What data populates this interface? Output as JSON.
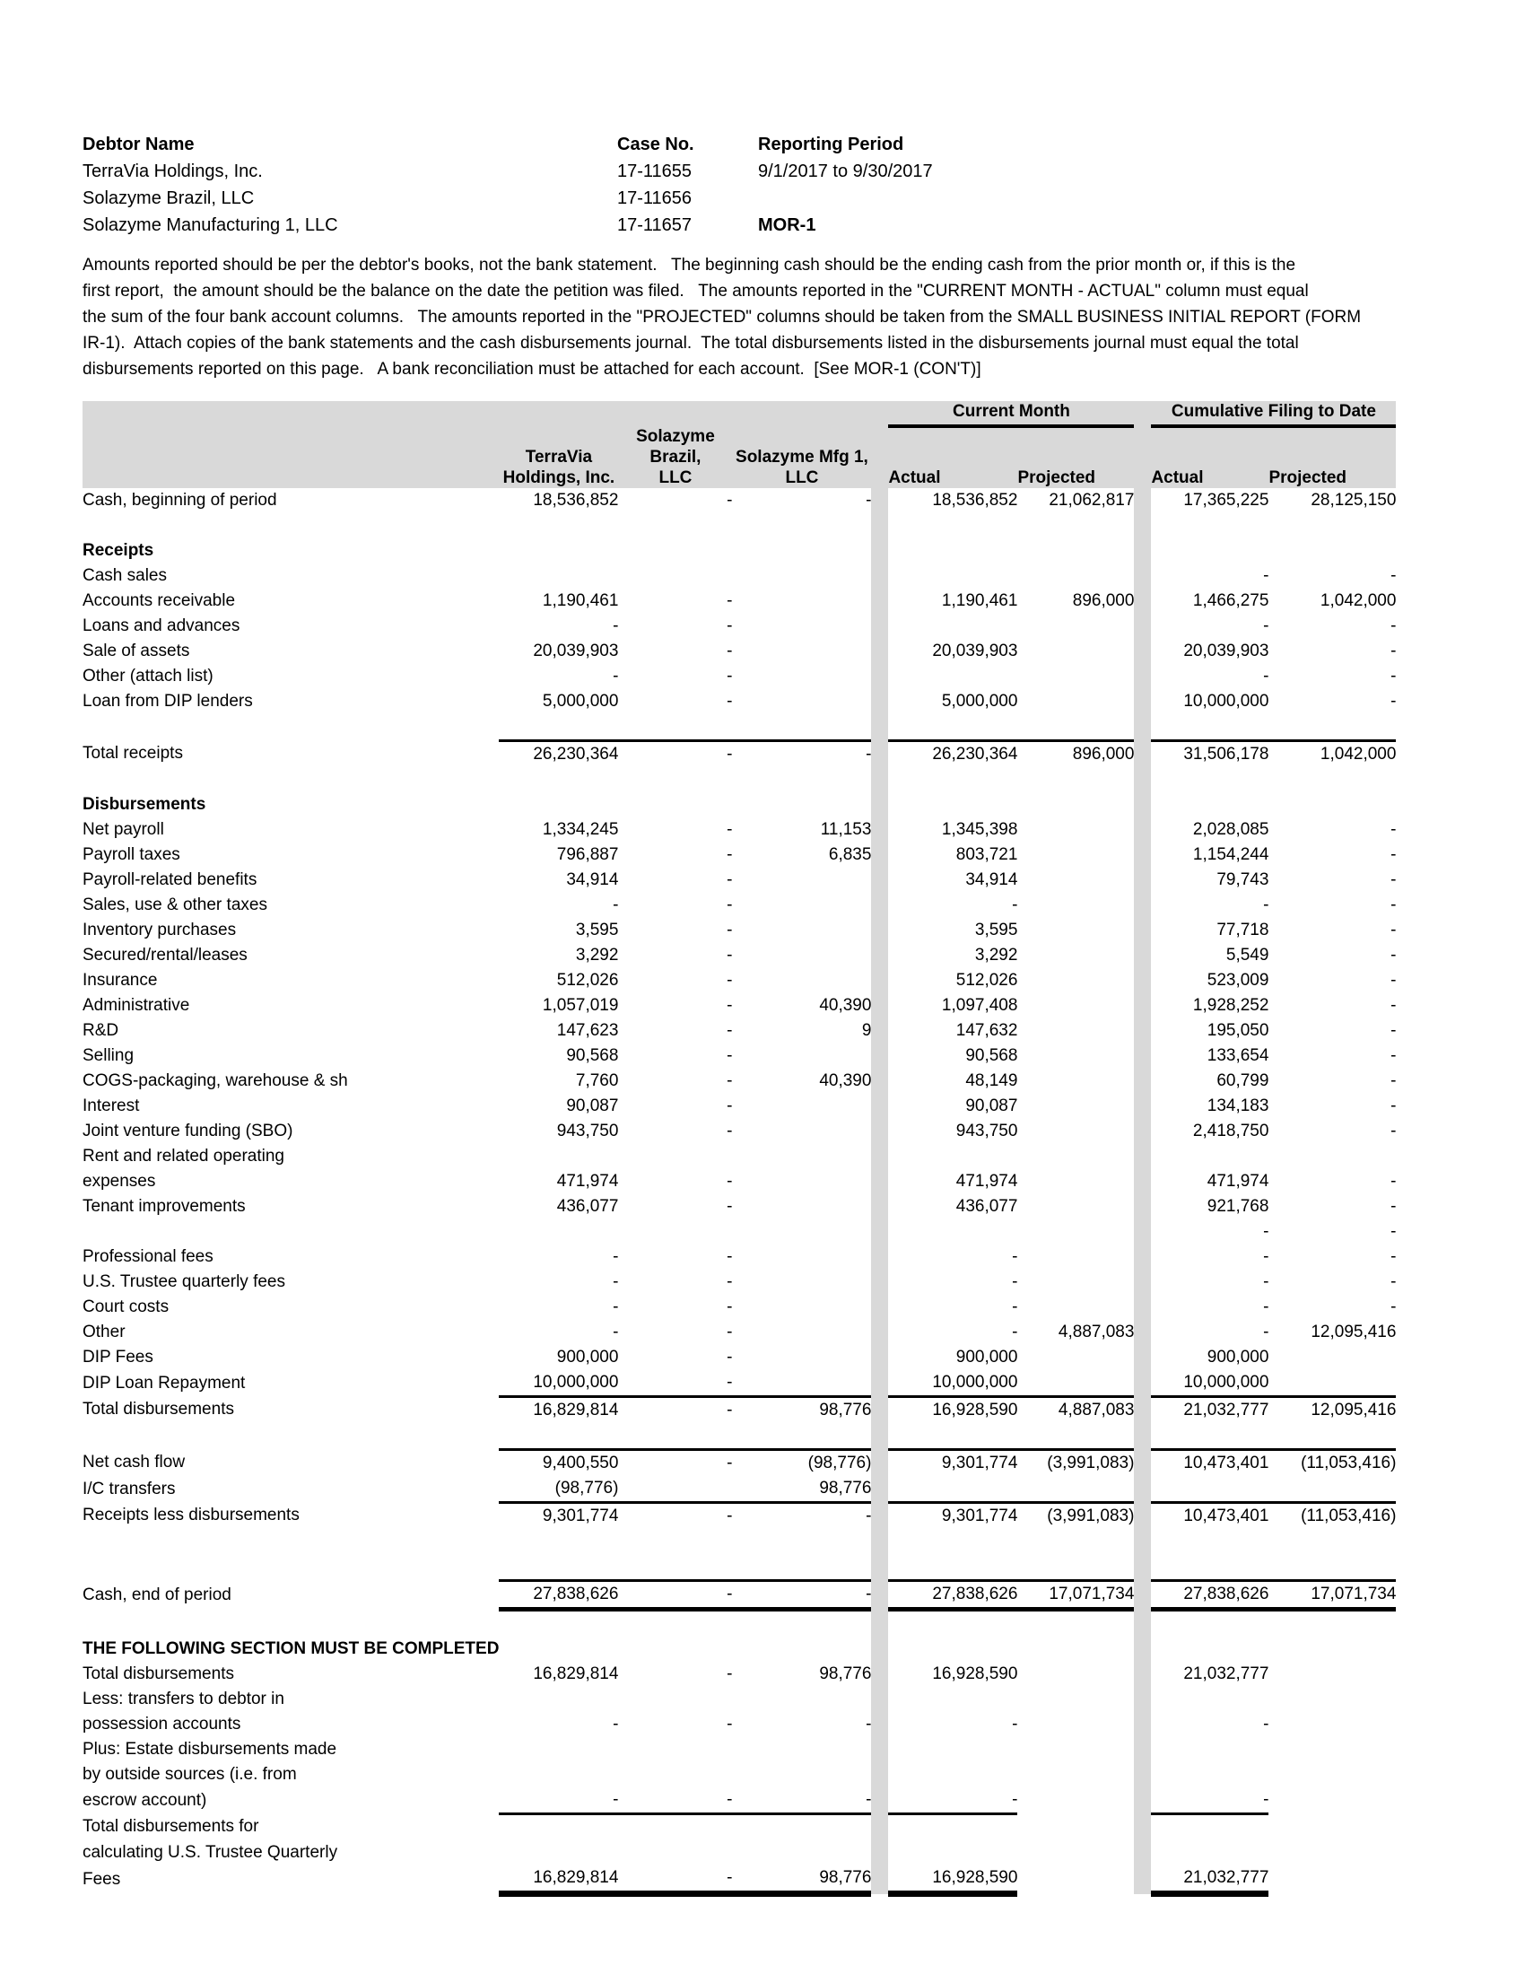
{
  "header": {
    "debtor_label": "Debtor Name",
    "debtors": [
      "TerraVia Holdings, Inc.",
      "Solazyme Brazil, LLC",
      "Solazyme Manufacturing 1, LLC"
    ],
    "case_label": "Case No.",
    "case_numbers": [
      "17-11655",
      "17-11656",
      "17-11657"
    ],
    "period_label": "Reporting Period",
    "period_value": "9/1/2017 to 9/30/2017",
    "form_code": "MOR-1"
  },
  "instructions": {
    "lines": [
      "Amounts reported should be per the debtor's books, not the bank statement.   The beginning cash should be the ending cash from the prior month or, if this is the",
      "first report,  the amount should be the balance on the date the petition was filed.   The amounts reported in the \"CURRENT MONTH - ACTUAL\" column must equal",
      "the sum of the four bank account columns.   The amounts reported in the \"PROJECTED\" columns should be taken from the SMALL BUSINESS INITIAL REPORT (FORM",
      "IR-1).  Attach copies of the bank statements and the cash disbursements journal.  The total disbursements listed in the disbursements journal must equal the total",
      "disbursements reported on this page.   A bank reconciliation must be attached for each account.  [See MOR-1 (CON'T)]"
    ]
  },
  "table": {
    "groups": {
      "current_month": "Current Month",
      "cumulative": "Cumulative Filing to Date"
    },
    "cols": {
      "c1a": "TerraVia",
      "c1b": "Holdings, Inc.",
      "c2a": "Solazyme Brazil,",
      "c2b": "LLC",
      "c3a": "Solazyme Mfg 1,",
      "c3b": "LLC",
      "actual": "Actual",
      "projected": "Projected"
    },
    "gray": "#d9d9d9",
    "rows": [
      {
        "l": "Cash, beginning of period",
        "v": [
          "18,536,852",
          "-",
          "-",
          "18,536,852",
          "21,062,817",
          "17,365,225",
          "28,125,150"
        ]
      },
      {
        "l": "",
        "v": [
          "",
          "",
          "",
          "",
          "",
          "",
          ""
        ]
      },
      {
        "l": "Receipts",
        "b": 1,
        "v": [
          "",
          "",
          "",
          "",
          "",
          "",
          ""
        ]
      },
      {
        "l": "Cash sales",
        "i": 1,
        "v": [
          "",
          "",
          "",
          "",
          "",
          "-",
          "-"
        ]
      },
      {
        "l": "Accounts receivable",
        "i": 1,
        "v": [
          "1,190,461",
          "-",
          "",
          "1,190,461",
          "896,000",
          "1,466,275",
          "1,042,000"
        ]
      },
      {
        "l": "Loans and advances",
        "i": 1,
        "v": [
          "-",
          "-",
          "",
          "",
          "",
          "-",
          "-"
        ]
      },
      {
        "l": "Sale of assets",
        "i": 1,
        "v": [
          "20,039,903",
          "-",
          "",
          "20,039,903",
          "",
          "20,039,903",
          "-"
        ]
      },
      {
        "l": "Other (attach list)",
        "i": 1,
        "v": [
          "-",
          "-",
          "",
          "",
          "",
          "-",
          "-"
        ]
      },
      {
        "l": "Loan from DIP lenders",
        "i": 1,
        "v": [
          "5,000,000",
          "-",
          "",
          "5,000,000",
          "",
          "10,000,000",
          "-"
        ]
      },
      {
        "l": "",
        "v": [
          "",
          "",
          "",
          "",
          "",
          "",
          ""
        ]
      },
      {
        "l": "Total receipts",
        "bt": 1,
        "v": [
          "26,230,364",
          "-",
          "-",
          "26,230,364",
          "896,000",
          "31,506,178",
          "1,042,000"
        ]
      },
      {
        "l": "",
        "v": [
          "",
          "",
          "",
          "",
          "",
          "",
          ""
        ]
      },
      {
        "l": "Disbursements",
        "b": 1,
        "v": [
          "",
          "",
          "",
          "",
          "",
          "",
          ""
        ]
      },
      {
        "l": "Net payroll",
        "i": 1,
        "v": [
          "1,334,245",
          "-",
          "11,153",
          "1,345,398",
          "",
          "2,028,085",
          "-"
        ]
      },
      {
        "l": "Payroll taxes",
        "i": 1,
        "v": [
          "796,887",
          "-",
          "6,835",
          "803,721",
          "",
          "1,154,244",
          "-"
        ]
      },
      {
        "l": "Payroll-related benefits",
        "i": 1,
        "v": [
          "34,914",
          "-",
          "",
          "34,914",
          "",
          "79,743",
          "-"
        ]
      },
      {
        "l": "Sales, use & other taxes",
        "i": 1,
        "v": [
          "-",
          "-",
          "",
          "-",
          "",
          "-",
          "-"
        ]
      },
      {
        "l": "Inventory purchases",
        "i": 1,
        "v": [
          "3,595",
          "-",
          "",
          "3,595",
          "",
          "77,718",
          "-"
        ]
      },
      {
        "l": "Secured/rental/leases",
        "i": 1,
        "v": [
          "3,292",
          "-",
          "",
          "3,292",
          "",
          "5,549",
          "-"
        ]
      },
      {
        "l": "Insurance",
        "i": 1,
        "v": [
          "512,026",
          "-",
          "",
          "512,026",
          "",
          "523,009",
          "-"
        ]
      },
      {
        "l": "Administrative",
        "i": 1,
        "v": [
          "1,057,019",
          "-",
          "40,390",
          "1,097,408",
          "",
          "1,928,252",
          "-"
        ]
      },
      {
        "l": "R&D",
        "i": 1,
        "v": [
          "147,623",
          "-",
          "9",
          "147,632",
          "",
          "195,050",
          "-"
        ]
      },
      {
        "l": "Selling",
        "i": 1,
        "v": [
          "90,568",
          "-",
          "",
          "90,568",
          "",
          "133,654",
          "-"
        ]
      },
      {
        "l": "COGS-packaging, warehouse & sh",
        "i": 1,
        "v": [
          "7,760",
          "-",
          "40,390",
          "48,149",
          "",
          "60,799",
          "-"
        ]
      },
      {
        "l": "Interest",
        "i": 1,
        "v": [
          "90,087",
          "-",
          "",
          "90,087",
          "",
          "134,183",
          "-"
        ]
      },
      {
        "l": "Joint venture funding (SBO)",
        "i": 1,
        "v": [
          "943,750",
          "-",
          "",
          "943,750",
          "",
          "2,418,750",
          "-"
        ]
      },
      {
        "l": "Rent and related operating",
        "i": 1,
        "v": [
          "",
          "",
          "",
          "",
          "",
          "",
          ""
        ]
      },
      {
        "l": "expenses",
        "i": 1,
        "v": [
          "471,974",
          "-",
          "",
          "471,974",
          "",
          "471,974",
          "-"
        ]
      },
      {
        "l": "Tenant improvements",
        "i": 1,
        "v": [
          "436,077",
          "-",
          "",
          "436,077",
          "",
          "921,768",
          "-"
        ]
      },
      {
        "l": "",
        "v": [
          "",
          "",
          "",
          "",
          "",
          "-",
          "-"
        ]
      },
      {
        "l": "Professional fees",
        "i": 1,
        "v": [
          "-",
          "-",
          "",
          "-",
          "",
          "-",
          "-"
        ]
      },
      {
        "l": "U.S. Trustee quarterly fees",
        "i": 1,
        "v": [
          "-",
          "-",
          "",
          "-",
          "",
          "-",
          "-"
        ]
      },
      {
        "l": "Court costs",
        "i": 1,
        "v": [
          "-",
          "-",
          "",
          "-",
          "",
          "-",
          "-"
        ]
      },
      {
        "l": "Other",
        "i": 1,
        "v": [
          "-",
          "-",
          "",
          "-",
          "4,887,083",
          "-",
          "12,095,416"
        ]
      },
      {
        "l": "DIP Fees",
        "i": 1,
        "v": [
          "900,000",
          "-",
          "",
          "900,000",
          "",
          "900,000",
          ""
        ]
      },
      {
        "l": "DIP Loan Repayment",
        "i": 1,
        "v": [
          "10,000,000",
          "-",
          "",
          "10,000,000",
          "",
          "10,000,000",
          ""
        ]
      },
      {
        "l": "Total disbursements",
        "bt": 1,
        "v": [
          "16,829,814",
          "-",
          "98,776",
          "16,928,590",
          "4,887,083",
          "21,032,777",
          "12,095,416"
        ]
      },
      {
        "l": "",
        "v": [
          "",
          "",
          "",
          "",
          "",
          "",
          ""
        ]
      },
      {
        "l": "Net cash flow",
        "bt": 1,
        "v": [
          "9,400,550",
          "-",
          "(98,776)",
          "9,301,774",
          "(3,991,083)",
          "10,473,401",
          "(11,053,416)"
        ]
      },
      {
        "l": "I/C transfers",
        "v": [
          "(98,776)",
          "",
          "98,776",
          "",
          "",
          "",
          ""
        ]
      },
      {
        "l": "Receipts less disbursements",
        "bt": 1,
        "v": [
          "9,301,774",
          "-",
          "-",
          "9,301,774",
          "(3,991,083)",
          "10,473,401",
          "(11,053,416)"
        ]
      },
      {
        "l": "",
        "v": [
          "",
          "",
          "",
          "",
          "",
          "",
          ""
        ]
      },
      {
        "l": "",
        "v": [
          "",
          "",
          "",
          "",
          "",
          "",
          ""
        ]
      },
      {
        "l": "Cash, end of period",
        "bt": 1,
        "bbh": 1,
        "v": [
          "27,838,626",
          "-",
          "-",
          "27,838,626",
          "17,071,734",
          "27,838,626",
          "17,071,734"
        ]
      },
      {
        "l": "",
        "v": [
          "",
          "",
          "",
          "",
          "",
          "",
          ""
        ]
      },
      {
        "l": "THE FOLLOWING SECTION MUST BE COMPLETED",
        "b": 1,
        "v": [
          "",
          "",
          "",
          "",
          "",
          "",
          ""
        ]
      },
      {
        "l": "Total disbursements",
        "v": [
          "16,829,814",
          "-",
          "98,776",
          "16,928,590",
          "",
          "21,032,777",
          ""
        ]
      },
      {
        "l": "Less: transfers to debtor in",
        "v": [
          "",
          "",
          "",
          "",
          "",
          "",
          ""
        ]
      },
      {
        "l": "possession accounts",
        "v": [
          "-",
          "-",
          "-",
          "-",
          "",
          "-",
          ""
        ]
      },
      {
        "l": "Plus: Estate disbursements made",
        "v": [
          "",
          "",
          "",
          "",
          "",
          "",
          ""
        ]
      },
      {
        "l": "by outside sources (i.e. from",
        "v": [
          "",
          "",
          "",
          "",
          "",
          "",
          ""
        ]
      },
      {
        "l": "escrow account)",
        "bbn": 1,
        "v": [
          "-",
          "-",
          "-",
          "-",
          "",
          "-",
          ""
        ]
      },
      {
        "l": "Total disbursements for",
        "v": [
          "",
          "",
          "",
          "",
          "",
          "",
          ""
        ]
      },
      {
        "l": "calculating U.S. Trustee Quarterly",
        "v": [
          "",
          "",
          "",
          "",
          "",
          "",
          ""
        ]
      },
      {
        "l": "Fees",
        "fbn": 1,
        "v": [
          "16,829,814",
          "-",
          "98,776",
          "16,928,590",
          "",
          "21,032,777",
          ""
        ]
      }
    ]
  }
}
